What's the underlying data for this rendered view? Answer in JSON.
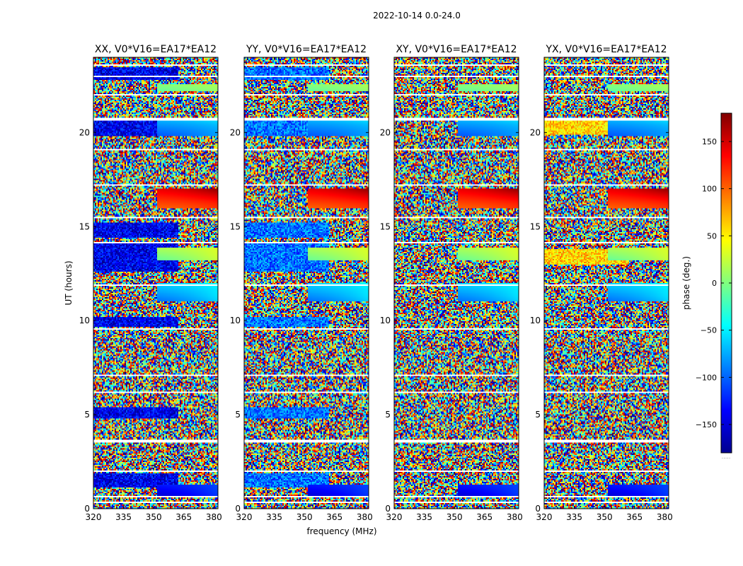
{
  "figure_title": "2022-10-14 0.0-24.0",
  "colorbar": {
    "label": "phase (deg.)",
    "range": [
      -180,
      180
    ],
    "ticks": [
      -150,
      -100,
      -50,
      0,
      50,
      100,
      150
    ],
    "tick_labels": [
      "−150",
      "−100",
      "−50",
      "0",
      "50",
      "100",
      "150"
    ],
    "colormap": "jet",
    "colors": [
      "#00008f",
      "#0000ff",
      "#00ffff",
      "#ffff00",
      "#ff0000",
      "#800000"
    ],
    "footer": "....."
  },
  "chart_data": [
    {
      "type": "heatmap",
      "title": "XX, V0*V16=EA17*EA12",
      "xlabel": "",
      "ylabel": "UT (hours)",
      "xlim": [
        320,
        382
      ],
      "ylim": [
        0,
        24
      ],
      "xticks": [
        320,
        335,
        350,
        365,
        380
      ],
      "yticks": [
        0,
        5,
        10,
        15,
        20
      ],
      "z": "phase (deg.)",
      "bias_phase": -140,
      "bias_bands": [
        [
          1.1,
          1.9
        ],
        [
          4.8,
          5.4
        ],
        [
          9.7,
          10.2
        ],
        [
          12.6,
          14.2
        ],
        [
          14.4,
          15.2
        ],
        [
          19.8,
          20.6
        ],
        [
          22.8,
          23.5
        ]
      ],
      "ripple_bands": [
        [
          0.7,
          1.3
        ],
        [
          11.0,
          12.0
        ],
        [
          13.2,
          13.9
        ],
        [
          16.0,
          17.0
        ],
        [
          19.8,
          20.6
        ],
        [
          22.2,
          22.6
        ]
      ],
      "gaps": [
        0.35,
        0.62,
        2.0,
        3.6,
        6.2,
        7.1,
        9.55,
        11.9,
        14.15,
        15.5,
        17.2,
        19.1,
        20.7,
        22.0,
        23.0,
        23.6
      ]
    },
    {
      "type": "heatmap",
      "title": "YY, V0*V16=EA17*EA12",
      "xlabel": "frequency (MHz)",
      "ylabel": "",
      "xlim": [
        320,
        382
      ],
      "ylim": [
        0,
        24
      ],
      "xticks": [
        320,
        335,
        350,
        365,
        380
      ],
      "yticks": [
        0,
        5,
        10,
        15,
        20
      ],
      "z": "phase (deg.)",
      "bias_phase": -95,
      "bias_bands": [
        [
          1.1,
          1.9
        ],
        [
          4.8,
          5.4
        ],
        [
          9.7,
          10.2
        ],
        [
          12.6,
          14.2
        ],
        [
          14.4,
          15.2
        ],
        [
          19.8,
          20.6
        ],
        [
          22.8,
          23.5
        ]
      ],
      "ripple_bands": [
        [
          0.7,
          1.3
        ],
        [
          11.0,
          12.0
        ],
        [
          13.2,
          13.9
        ],
        [
          16.0,
          17.0
        ],
        [
          19.8,
          20.6
        ],
        [
          22.2,
          22.6
        ]
      ],
      "gaps": [
        0.35,
        0.62,
        2.0,
        3.6,
        6.2,
        7.1,
        9.55,
        11.9,
        14.15,
        15.5,
        17.2,
        19.1,
        20.7,
        22.0,
        23.0,
        23.6
      ]
    },
    {
      "type": "heatmap",
      "title": "XY, V0*V16=EA17*EA12",
      "xlabel": "",
      "ylabel": "",
      "xlim": [
        320,
        382
      ],
      "ylim": [
        0,
        24
      ],
      "xticks": [
        320,
        335,
        350,
        365,
        380
      ],
      "yticks": [
        0,
        5,
        10,
        15,
        20
      ],
      "z": "phase (deg.)",
      "bias_phase": null,
      "bias_bands": [],
      "ripple_bands": [
        [
          0.7,
          1.3
        ],
        [
          11.0,
          12.0
        ],
        [
          13.2,
          13.9
        ],
        [
          16.0,
          17.0
        ],
        [
          19.8,
          20.6
        ],
        [
          22.2,
          22.6
        ]
      ],
      "gaps": [
        0.35,
        0.62,
        2.0,
        3.6,
        6.2,
        7.1,
        9.55,
        11.9,
        14.15,
        15.5,
        17.2,
        19.1,
        20.7,
        22.0,
        23.0,
        23.6
      ]
    },
    {
      "type": "heatmap",
      "title": "YX, V0*V16=EA17*EA12",
      "xlabel": "",
      "ylabel": "",
      "xlim": [
        320,
        382
      ],
      "ylim": [
        0,
        24
      ],
      "xticks": [
        320,
        335,
        350,
        365,
        380
      ],
      "yticks": [
        0,
        5,
        10,
        15,
        20
      ],
      "z": "phase (deg.)",
      "bias_phase": 60,
      "bias_bands": [
        [
          19.9,
          20.6
        ],
        [
          13.0,
          13.8
        ]
      ],
      "ripple_bands": [
        [
          0.7,
          1.3
        ],
        [
          11.0,
          12.0
        ],
        [
          13.2,
          13.9
        ],
        [
          16.0,
          17.0
        ],
        [
          19.8,
          20.6
        ],
        [
          22.2,
          22.6
        ]
      ],
      "gaps": [
        0.35,
        0.62,
        2.0,
        3.6,
        6.2,
        7.1,
        9.55,
        11.9,
        14.15,
        15.5,
        17.2,
        19.1,
        20.7,
        22.0,
        23.0,
        23.6
      ]
    }
  ]
}
